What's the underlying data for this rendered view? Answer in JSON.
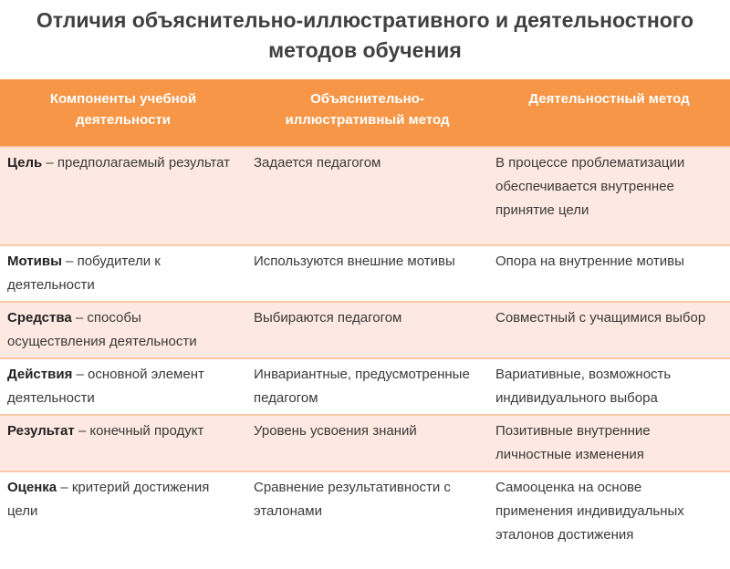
{
  "title": "Отличия объяснительно-иллюстративного и деятельностного методов обучения",
  "colors": {
    "header": "#f79646",
    "band": "#fde9e1"
  },
  "headers": [
    "Компоненты учебной деятельности",
    "Объяснительно-иллюстративный метод",
    "Деятельностный метод"
  ],
  "rows": [
    {
      "term": "Цель",
      "def": " – предполагаемый результат",
      "expl": "Задается педагогом",
      "act": "В процессе проблематизации обеспечивается внутреннее принятие цели"
    },
    {
      "term": "Мотивы",
      "def": " – побудители к деятельности",
      "expl": "Используются внешние мотивы",
      "act": "Опора на внутренние мотивы"
    },
    {
      "term": "Средства",
      "def": " – способы осуществления деятельности",
      "expl": "Выбираются педагогом",
      "act": "Совместный с учащимися выбор"
    },
    {
      "term": "Действия",
      "def": " – основной элемент деятельности",
      "expl": "Инвариантные, предусмотренные педагогом",
      "act": "Вариативные, возможность индивидуального выбора"
    },
    {
      "term": "Результат",
      "def": " – конечный продукт",
      "expl": "Уровень усвоения знаний",
      "act": "Позитивные внутренние личностные изменения"
    },
    {
      "term": "Оценка",
      "def": " – критерий достижения цели",
      "expl": "Сравнение результативности с эталонами",
      "act": "Самооценка на основе применения индивидуальных эталонов достижения"
    }
  ]
}
